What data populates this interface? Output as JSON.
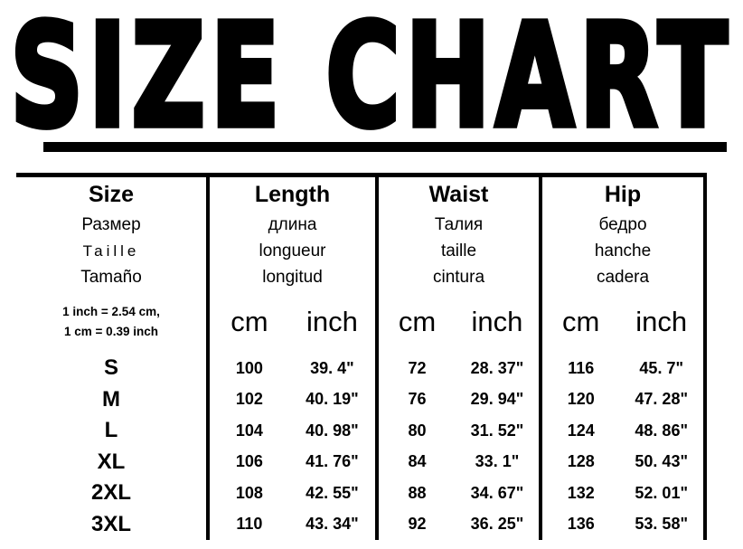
{
  "title": "SIZE CHART",
  "colors": {
    "text": "#000000",
    "background": "#ffffff",
    "rule": "#000000"
  },
  "chart_data": {
    "type": "table",
    "title": "SIZE CHART",
    "note": [
      "1 inch = 2.54 cm,",
      "1 cm = 0.39 inch"
    ],
    "unit_labels": {
      "cm": "cm",
      "inch": "inch"
    },
    "columns": [
      {
        "key": "size",
        "label_en": "Size",
        "label_ru": "Размер",
        "label_fr": "Taille",
        "label_es": "Tamaño"
      },
      {
        "key": "length",
        "label_en": "Length",
        "label_ru": "длина",
        "label_fr": "longueur",
        "label_es": "longitud"
      },
      {
        "key": "waist",
        "label_en": "Waist",
        "label_ru": "Талия",
        "label_fr": "taille",
        "label_es": "cintura"
      },
      {
        "key": "hip",
        "label_en": "Hip",
        "label_ru": "бедро",
        "label_fr": "hanche",
        "label_es": "cadera"
      }
    ],
    "rows": [
      {
        "size": "S",
        "length_cm": 100,
        "length_inch": "39. 4\"",
        "waist_cm": 72,
        "waist_inch": "28. 37\"",
        "hip_cm": 116,
        "hip_inch": "45. 7\""
      },
      {
        "size": "M",
        "length_cm": 102,
        "length_inch": "40. 19\"",
        "waist_cm": 76,
        "waist_inch": "29. 94\"",
        "hip_cm": 120,
        "hip_inch": "47. 28\""
      },
      {
        "size": "L",
        "length_cm": 104,
        "length_inch": "40. 98\"",
        "waist_cm": 80,
        "waist_inch": "31. 52\"",
        "hip_cm": 124,
        "hip_inch": "48. 86\""
      },
      {
        "size": "XL",
        "length_cm": 106,
        "length_inch": "41. 76\"",
        "waist_cm": 84,
        "waist_inch": "33. 1\"",
        "hip_cm": 128,
        "hip_inch": "50. 43\""
      },
      {
        "size": "2XL",
        "length_cm": 108,
        "length_inch": "42. 55\"",
        "waist_cm": 88,
        "waist_inch": "34. 67\"",
        "hip_cm": 132,
        "hip_inch": "52. 01\""
      },
      {
        "size": "3XL",
        "length_cm": 110,
        "length_inch": "43. 34\"",
        "waist_cm": 92,
        "waist_inch": "36. 25\"",
        "hip_cm": 136,
        "hip_inch": "53. 58\""
      }
    ]
  }
}
